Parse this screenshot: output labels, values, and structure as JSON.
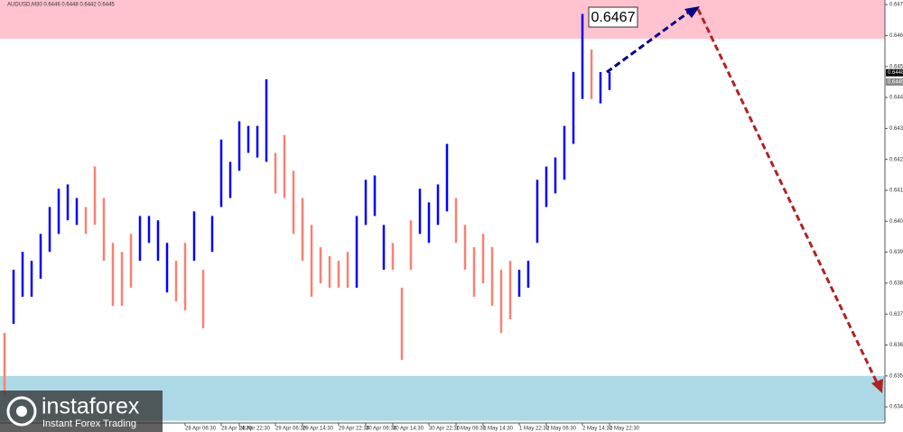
{
  "chart_data": {
    "type": "range-bars",
    "title": "AUDUSD,M30  0.6446 0.6448 0.6442 0.6445",
    "ylim": [
      0.63345,
      0.64715
    ],
    "yticks": [
      {
        "value": 0.647,
        "label": "0.6470"
      },
      {
        "value": 0.646,
        "label": "0.6460"
      },
      {
        "value": 0.645,
        "label": "0.6450"
      },
      {
        "value": 0.644,
        "label": "0.6440"
      },
      {
        "value": 0.643,
        "label": "0.6430"
      },
      {
        "value": 0.642,
        "label": "0.6420"
      },
      {
        "value": 0.641,
        "label": "0.6410"
      },
      {
        "value": 0.64,
        "label": "0.6400"
      },
      {
        "value": 0.639,
        "label": "0.6390"
      },
      {
        "value": 0.638,
        "label": "0.6380"
      },
      {
        "value": 0.637,
        "label": "0.6370"
      },
      {
        "value": 0.636,
        "label": "0.6360"
      },
      {
        "value": 0.635,
        "label": "0.6350"
      },
      {
        "value": 0.634,
        "label": "0.6340"
      }
    ],
    "categories": [
      null,
      null,
      null,
      null,
      null,
      null,
      null,
      null,
      null,
      null,
      null,
      null,
      null,
      null,
      null,
      null,
      null,
      null,
      null,
      null,
      "28 Apr 06:30",
      null,
      null,
      null,
      "28 Apr 14:30",
      null,
      "28 Apr 22:30",
      null,
      null,
      null,
      "29 Apr 06:30",
      null,
      null,
      "29 Apr 14:30",
      null,
      null,
      null,
      "29 Apr 22:30",
      null,
      null,
      "30 Apr 06:30",
      null,
      null,
      "30 Apr 14:30",
      null,
      null,
      null,
      "30 Apr 22:30",
      null,
      null,
      "1 May 06:30",
      null,
      null,
      "1 May 14:30",
      null,
      null,
      null,
      "1 May 22:30",
      null,
      null,
      "2 May 06:30",
      null,
      null,
      null,
      "2 May 14:30",
      null,
      null,
      "2 May 22:30"
    ],
    "highs": [
      0.63639,
      0.63843,
      0.63901,
      0.63872,
      0.63959,
      0.64046,
      0.64105,
      0.64119,
      0.64075,
      0.64046,
      0.64177,
      0.64075,
      0.6393,
      0.63901,
      0.63959,
      0.64017,
      0.64017,
      0.64003,
      0.6393,
      0.63872,
      0.6393,
      0.64032,
      0.63843,
      0.64017,
      0.64264,
      0.64192,
      0.64323,
      0.64308,
      0.64308,
      0.64459,
      0.64221,
      0.64279,
      0.64163,
      0.64075,
      0.63988,
      0.63916,
      0.63887,
      0.63872,
      0.63901,
      0.64017,
      0.64134,
      0.64148,
      0.63988,
      0.6393,
      0.63785,
      0.64003,
      0.64105,
      0.64061,
      0.64119,
      0.6425,
      0.64075,
      0.63988,
      0.63916,
      0.63959,
      0.63916,
      0.63843,
      0.63872,
      0.63843,
      0.63872,
      0.64134,
      0.64177,
      0.64206,
      0.64308,
      0.64482,
      0.6467,
      0.64555,
      0.64482,
      0.64482
    ],
    "lows": [
      0.63436,
      0.63668,
      0.63756,
      0.63756,
      0.63814,
      0.63901,
      0.63959,
      0.64003,
      0.63988,
      0.63959,
      0.63988,
      0.63872,
      0.63727,
      0.63727,
      0.63785,
      0.63872,
      0.6393,
      0.63872,
      0.6377,
      0.63741,
      0.63712,
      0.63872,
      0.63654,
      0.63901,
      0.64046,
      0.64075,
      0.64163,
      0.64221,
      0.64206,
      0.64192,
      0.6409,
      0.64075,
      0.63959,
      0.63872,
      0.63756,
      0.63799,
      0.63785,
      0.63785,
      0.63785,
      0.63785,
      0.63988,
      0.64017,
      0.63843,
      0.63843,
      0.63552,
      0.63843,
      0.63959,
      0.6393,
      0.63988,
      0.64032,
      0.6393,
      0.63843,
      0.63756,
      0.63799,
      0.63727,
      0.63639,
      0.63683,
      0.63756,
      0.63785,
      0.6393,
      0.64046,
      0.6409,
      0.64134,
      0.6425,
      0.64395,
      0.64395,
      0.64381,
      0.64424
    ],
    "bar_colors": [
      "#fa8072",
      "#0000ff",
      "#0000ff",
      "#0000ff",
      "#0000ff",
      "#0000ff",
      "#0000ff",
      "#0000ff",
      "#0000ff",
      "#fa8072",
      "#fa8072",
      "#fa8072",
      "#fa8072",
      "#fa8072",
      "#fa8072",
      "#0000ff",
      "#0000ff",
      "#0000ff",
      "#0000ff",
      "#fa8072",
      "#fa8072",
      "#0000ff",
      "#fa8072",
      "#0000ff",
      "#0000ff",
      "#0000ff",
      "#0000ff",
      "#0000ff",
      "#0000ff",
      "#0000ff",
      "#fa8072",
      "#fa8072",
      "#fa8072",
      "#fa8072",
      "#fa8072",
      "#fa8072",
      "#fa8072",
      "#fa8072",
      "#fa8072",
      "#0000ff",
      "#0000ff",
      "#0000ff",
      "#0000ff",
      "#fa8072",
      "#fa8072",
      "#fa8072",
      "#0000ff",
      "#0000ff",
      "#0000ff",
      "#0000ff",
      "#fa8072",
      "#fa8072",
      "#fa8072",
      "#fa8072",
      "#fa8072",
      "#fa8072",
      "#fa8072",
      "#0000ff",
      "#0000ff",
      "#0000ff",
      "#0000ff",
      "#0000ff",
      "#0000ff",
      "#0000ff",
      "#0000ff",
      "#fa8072",
      "#0000ff",
      "#0000ff"
    ],
    "zones": [
      {
        "from": 0.6459,
        "to": 0.64715,
        "color": "#ffc2cf"
      },
      {
        "from": 0.63355,
        "to": 0.635,
        "color": "#add8e6"
      }
    ],
    "annotation": "0.6467",
    "price_labels": [
      {
        "value": 0.6448,
        "label": "0.6448"
      },
      {
        "value": 0.6445,
        "label": "0.6445"
      }
    ],
    "logo": {
      "name": "instaforex",
      "tagline": "Instant Forex Trading"
    }
  }
}
